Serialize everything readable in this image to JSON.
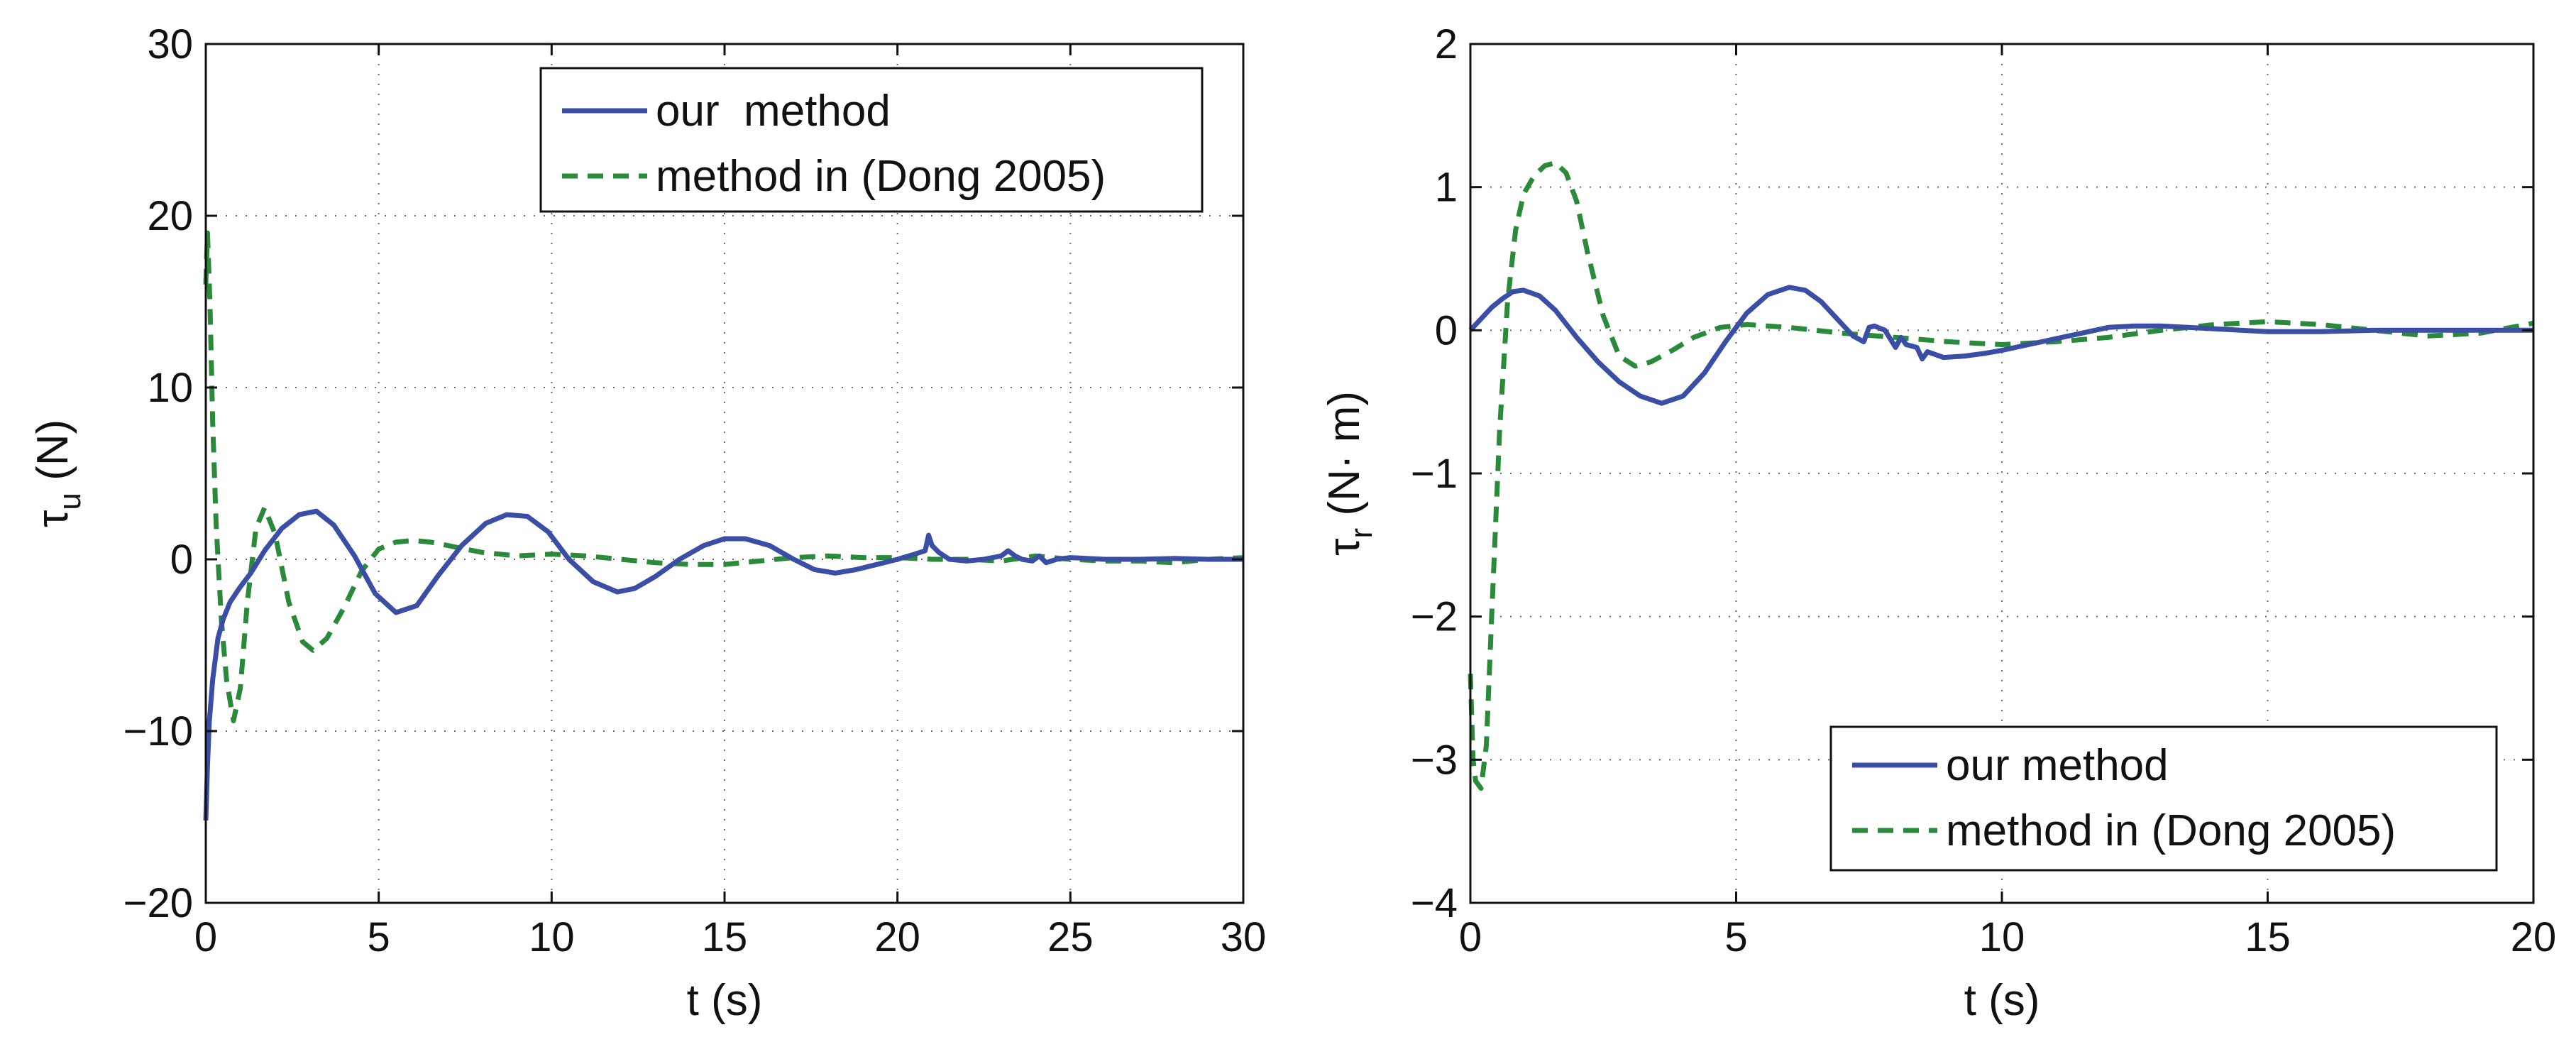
{
  "colors": {
    "ours": "#3a4ea6",
    "dong": "#2a8a3a"
  },
  "chart_data": [
    {
      "type": "line",
      "xlabel": "t (s)",
      "ylabel": {
        "symbol": "τ",
        "sub": "u",
        "unit": " (N)"
      },
      "xlim": [
        0,
        30
      ],
      "ylim": [
        -20,
        30
      ],
      "xticks": [
        0,
        5,
        10,
        15,
        20,
        25,
        30
      ],
      "yticks": [
        -20,
        -10,
        0,
        10,
        20,
        30
      ],
      "xtick_labels": [
        "0",
        "5",
        "10",
        "15",
        "20",
        "25",
        "30"
      ],
      "ytick_labels": [
        "−20",
        "−10",
        "0",
        "10",
        "20",
        "30"
      ],
      "grid": true,
      "legend": {
        "position": "top-right",
        "entries": [
          "our  method",
          "method in (Dong 2005)"
        ]
      },
      "series": [
        {
          "name": "our  method",
          "style": "solid",
          "x": [
            0,
            0.05,
            0.1,
            0.2,
            0.35,
            0.5,
            0.7,
            1.0,
            1.3,
            1.7,
            2.2,
            2.7,
            3.2,
            3.7,
            4.3,
            4.9,
            5.5,
            6.1,
            6.7,
            7.4,
            8.1,
            8.7,
            9.3,
            9.9,
            10.5,
            11.2,
            11.9,
            12.4,
            13.0,
            13.7,
            14.4,
            15.0,
            15.6,
            16.3,
            17.0,
            17.6,
            18.2,
            18.8,
            19.4,
            20.0,
            20.5,
            20.8,
            20.9,
            21.0,
            21.2,
            21.5,
            22.0,
            22.5,
            23.0,
            23.2,
            23.4,
            23.6,
            23.9,
            24.1,
            24.3,
            24.6,
            25.0,
            26.0,
            27.0,
            28.0,
            29.0,
            30.0
          ],
          "y": [
            -15.2,
            -12,
            -9.5,
            -7,
            -4.6,
            -3.5,
            -2.5,
            -1.6,
            -0.8,
            0.5,
            1.8,
            2.6,
            2.8,
            2.0,
            0.2,
            -2.0,
            -3.1,
            -2.7,
            -1.0,
            0.8,
            2.1,
            2.6,
            2.5,
            1.6,
            0.0,
            -1.3,
            -1.9,
            -1.7,
            -1.0,
            0.0,
            0.8,
            1.2,
            1.2,
            0.8,
            0.0,
            -0.6,
            -0.8,
            -0.6,
            -0.3,
            0.0,
            0.3,
            0.5,
            1.4,
            0.8,
            0.4,
            0.0,
            -0.1,
            0.0,
            0.2,
            0.5,
            0.2,
            0.0,
            -0.1,
            0.2,
            -0.2,
            0.0,
            0.1,
            0.0,
            0.0,
            0.05,
            0.0,
            0.0
          ]
        },
        {
          "name": "method in (Dong 2005)",
          "style": "dashed",
          "x": [
            0,
            0.05,
            0.12,
            0.2,
            0.3,
            0.45,
            0.6,
            0.8,
            1.0,
            1.2,
            1.45,
            1.7,
            2.0,
            2.4,
            2.8,
            3.1,
            3.5,
            4.0,
            4.5,
            5.0,
            5.5,
            6.0,
            6.5,
            7.0,
            7.5,
            8.0,
            9.0,
            10.0,
            11.0,
            12.0,
            13.0,
            14.0,
            15.0,
            16.0,
            17.0,
            18.0,
            19.0,
            20.0,
            21.0,
            22.0,
            23.0,
            24.0,
            25.0,
            26.0,
            27.0,
            28.0,
            29.0,
            30.0
          ],
          "y": [
            16,
            19,
            15,
            8,
            2,
            -3.5,
            -7,
            -9.4,
            -7.5,
            -2.5,
            1.8,
            3.0,
            1.5,
            -2.5,
            -4.8,
            -5.3,
            -4.6,
            -2.8,
            -0.7,
            0.6,
            1.0,
            1.1,
            1.0,
            0.8,
            0.6,
            0.4,
            0.2,
            0.3,
            0.2,
            0.0,
            -0.2,
            -0.3,
            -0.3,
            -0.1,
            0.1,
            0.2,
            0.1,
            0.1,
            0.0,
            0.0,
            -0.1,
            0.2,
            0.0,
            -0.1,
            -0.1,
            -0.2,
            0.0,
            0.1
          ]
        }
      ]
    },
    {
      "type": "line",
      "xlabel": "t (s)",
      "ylabel": {
        "symbol": "τ",
        "sub": "r",
        "unit": " (N· m)"
      },
      "xlim": [
        0,
        20
      ],
      "ylim": [
        -4,
        2
      ],
      "xticks": [
        0,
        5,
        10,
        15,
        20
      ],
      "yticks": [
        -4,
        -3,
        -2,
        -1,
        0,
        1,
        2
      ],
      "xtick_labels": [
        "0",
        "5",
        "10",
        "15",
        "20"
      ],
      "ytick_labels": [
        "−4",
        "−3",
        "−2",
        "−1",
        "0",
        "1",
        "2"
      ],
      "grid": true,
      "legend": {
        "position": "bottom-right",
        "entries": [
          "our method",
          "method in (Dong 2005)"
        ]
      },
      "series": [
        {
          "name": "our method",
          "style": "solid",
          "x": [
            0,
            0.2,
            0.4,
            0.6,
            0.8,
            1.0,
            1.3,
            1.6,
            2.0,
            2.4,
            2.8,
            3.2,
            3.6,
            4.0,
            4.4,
            4.8,
            5.2,
            5.6,
            6.0,
            6.3,
            6.6,
            6.9,
            7.2,
            7.4,
            7.5,
            7.6,
            7.8,
            8.0,
            8.1,
            8.2,
            8.4,
            8.5,
            8.6,
            8.9,
            9.3,
            9.7,
            10.0,
            10.5,
            11.0,
            11.5,
            12.0,
            12.5,
            13.0,
            14.0,
            15.0,
            16.0,
            17.0,
            18.0,
            19.0,
            20.0
          ],
          "y": [
            0.0,
            0.08,
            0.16,
            0.22,
            0.27,
            0.28,
            0.24,
            0.14,
            -0.05,
            -0.22,
            -0.36,
            -0.46,
            -0.51,
            -0.46,
            -0.3,
            -0.08,
            0.12,
            0.25,
            0.3,
            0.28,
            0.2,
            0.08,
            -0.04,
            -0.08,
            0.02,
            0.03,
            0.0,
            -0.12,
            -0.05,
            -0.1,
            -0.12,
            -0.2,
            -0.15,
            -0.19,
            -0.18,
            -0.16,
            -0.14,
            -0.1,
            -0.06,
            -0.02,
            0.02,
            0.03,
            0.03,
            0.01,
            -0.01,
            -0.01,
            0.0,
            0.0,
            0.0,
            0.0
          ]
        },
        {
          "name": "method in (Dong 2005)",
          "style": "dashed",
          "x": [
            0,
            0.05,
            0.1,
            0.2,
            0.3,
            0.4,
            0.55,
            0.7,
            0.85,
            1.0,
            1.2,
            1.4,
            1.6,
            1.8,
            2.0,
            2.2,
            2.5,
            2.8,
            3.1,
            3.4,
            3.8,
            4.2,
            4.7,
            5.2,
            6.0,
            7.0,
            8.0,
            9.0,
            10.0,
            11.0,
            12.0,
            13.0,
            14.0,
            15.0,
            16.0,
            17.0,
            18.0,
            19.0,
            20.0
          ],
          "y": [
            -2.4,
            -3.0,
            -3.15,
            -3.2,
            -2.9,
            -2.0,
            -0.7,
            0.2,
            0.7,
            0.95,
            1.08,
            1.15,
            1.17,
            1.1,
            0.9,
            0.55,
            0.1,
            -0.18,
            -0.25,
            -0.22,
            -0.14,
            -0.05,
            0.02,
            0.04,
            0.02,
            -0.02,
            -0.05,
            -0.08,
            -0.1,
            -0.08,
            -0.05,
            0.0,
            0.04,
            0.06,
            0.04,
            0.0,
            -0.04,
            -0.02,
            0.05
          ]
        }
      ]
    }
  ]
}
